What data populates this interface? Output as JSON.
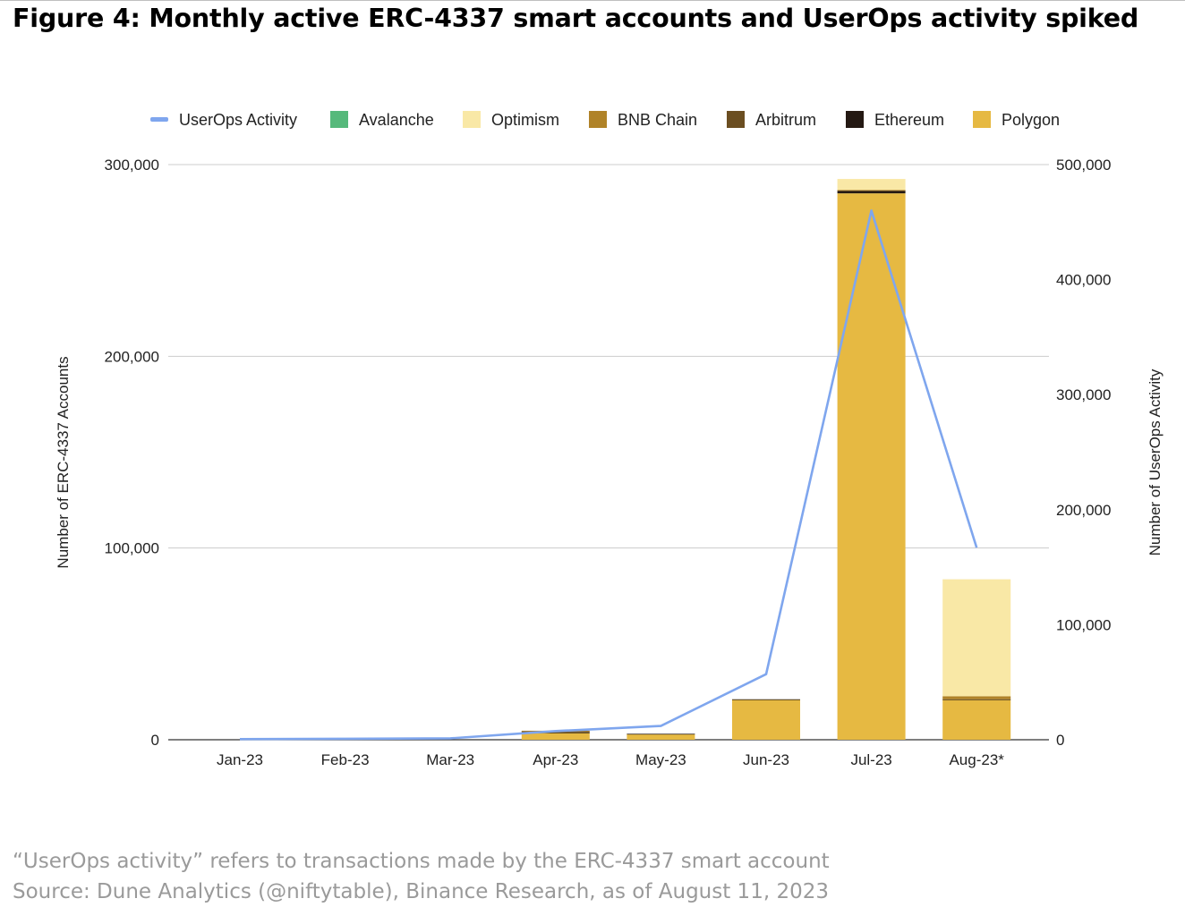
{
  "figure": {
    "title": "Figure 4: Monthly active ERC-4337 smart accounts and UserOps activity spiked",
    "note": "“UserOps activity” refers to transactions made by the ERC-4337 smart account",
    "source": "Source: Dune Analytics (@niftytable), Binance Research, as of August 11, 2023"
  },
  "chart_data": {
    "type": "bar",
    "stacked": true,
    "categories": [
      "Jan-23",
      "Feb-23",
      "Mar-23",
      "Apr-23",
      "May-23",
      "Jun-23",
      "Jul-23",
      "Aug-23*"
    ],
    "ylabel": "Number of ERC-4337 Accounts",
    "y2label": "Number of UserOps Activity",
    "ylim": [
      0,
      300000
    ],
    "y2lim": [
      0,
      500000
    ],
    "yticks": [
      0,
      100000,
      200000,
      300000
    ],
    "y2ticks": [
      0,
      100000,
      200000,
      300000,
      400000,
      500000
    ],
    "ytick_labels": [
      "0",
      "100,000",
      "200,000",
      "300,000"
    ],
    "y2tick_labels": [
      "0",
      "100,000",
      "200,000",
      "300,000",
      "400,000",
      "500,000"
    ],
    "grid": true,
    "legend_position": "top",
    "series": [
      {
        "name": "Polygon",
        "color": "#e6b942",
        "axis": "left",
        "values": [
          0,
          0,
          0,
          3500,
          3000,
          21000,
          285000,
          21000
        ]
      },
      {
        "name": "Ethereum",
        "color": "#241913",
        "axis": "left",
        "values": [
          0,
          0,
          0,
          300,
          100,
          100,
          1200,
          100
        ]
      },
      {
        "name": "Arbitrum",
        "color": "#6b4e21",
        "axis": "left",
        "values": [
          0,
          0,
          0,
          600,
          0,
          0,
          300,
          0
        ]
      },
      {
        "name": "BNB Chain",
        "color": "#b08328",
        "axis": "left",
        "values": [
          0,
          0,
          0,
          300,
          0,
          0,
          300,
          1600
        ]
      },
      {
        "name": "Optimism",
        "color": "#f9e8a6",
        "axis": "left",
        "values": [
          0,
          0,
          0,
          0,
          0,
          0,
          5700,
          61000
        ]
      },
      {
        "name": "Avalanche",
        "color": "#56b97b",
        "axis": "left",
        "values": [
          0,
          0,
          0,
          0,
          0,
          0,
          0,
          0
        ]
      },
      {
        "name": "UserOps Activity",
        "color": "#7fa6ee",
        "axis": "right",
        "type": "line",
        "values": [
          500,
          800,
          1200,
          7500,
          12000,
          57000,
          460000,
          167000
        ]
      }
    ],
    "legend_order": [
      "UserOps Activity",
      "Avalanche",
      "Optimism",
      "BNB Chain",
      "Arbitrum",
      "Ethereum",
      "Polygon"
    ]
  }
}
